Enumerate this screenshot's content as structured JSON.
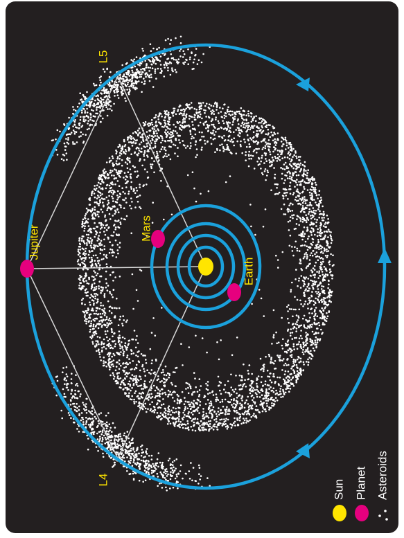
{
  "labels": {
    "l5": "L5",
    "jupiter": "Jupiter",
    "mars": "Mars",
    "earth": "Earth",
    "l4": "L4"
  },
  "legend": {
    "sun": "Sun",
    "planet": "Planet",
    "asteroids": "Asteroids"
  }
}
